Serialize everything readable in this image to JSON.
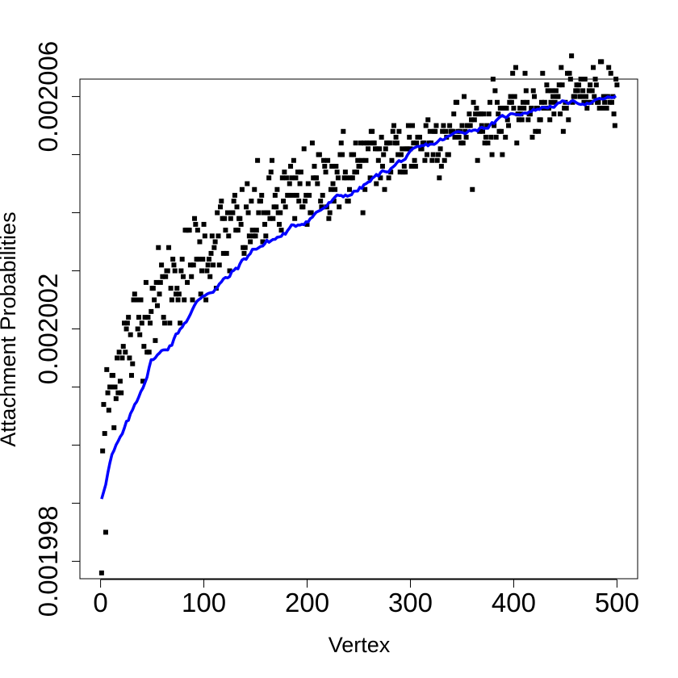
{
  "chart_data": {
    "type": "scatter",
    "title": "",
    "xlabel": "Vertex",
    "ylabel": "Attachment Probabilities",
    "xlim": [
      -20,
      520
    ],
    "ylim": [
      0.0019977,
      0.0020063
    ],
    "xticks": [
      0,
      100,
      200,
      300,
      400,
      500
    ],
    "xtick_labels": [
      "0",
      "100",
      "200",
      "300",
      "400",
      "500"
    ],
    "yticks": [
      0.001998,
      0.001999,
      0.002,
      0.002001,
      0.002002,
      0.002003,
      0.002004,
      0.002005,
      0.002006
    ],
    "ytick_labels": [
      "0.001998",
      "",
      "0.002002",
      "",
      "0.002006"
    ],
    "ytick_label_values": [
      0.001998,
      0.002,
      0.002002,
      0.002004,
      0.002006
    ],
    "ytick_major": [
      0.001998,
      0.001999,
      0.002,
      0.002001,
      0.002002,
      0.002003,
      0.002004,
      0.002005,
      0.002006
    ],
    "grid": false,
    "points_color": "#000000",
    "series": [
      {
        "kind": "points",
        "x_range": [
          1,
          500
        ],
        "count": 500,
        "trend_model": {
          "a": 0.0019985,
          "b": 7.7e-06,
          "k": 0.29
        },
        "outliers": [
          {
            "x": 1,
            "y": 0.0019978
          },
          {
            "x": 5,
            "y": 0.0019985
          },
          {
            "x": 30,
            "y": 0.0020012
          },
          {
            "x": 50,
            "y": 0.0020027
          },
          {
            "x": 110,
            "y": 0.0020034
          },
          {
            "x": 145,
            "y": 0.0020035
          },
          {
            "x": 155,
            "y": 0.0020042
          },
          {
            "x": 220,
            "y": 0.0020049
          },
          {
            "x": 250,
            "y": 0.0020048
          }
        ]
      },
      {
        "kind": "line",
        "color": "#0000ff",
        "description_points": [
          {
            "x": 1,
            "y": 0.0019991
          },
          {
            "x": 10,
            "y": 0.0019998
          },
          {
            "x": 20,
            "y": 0.0020001
          },
          {
            "x": 30,
            "y": 0.0020005
          },
          {
            "x": 40,
            "y": 0.002001
          },
          {
            "x": 50,
            "y": 0.0020015
          },
          {
            "x": 60,
            "y": 0.0020016
          },
          {
            "x": 70,
            "y": 0.0020018
          },
          {
            "x": 80,
            "y": 0.0020021
          },
          {
            "x": 100,
            "y": 0.0020026
          },
          {
            "x": 125,
            "y": 0.0020029
          },
          {
            "x": 150,
            "y": 0.0020034
          },
          {
            "x": 175,
            "y": 0.0020036
          },
          {
            "x": 200,
            "y": 0.0020039
          },
          {
            "x": 225,
            "y": 0.0020042
          },
          {
            "x": 250,
            "y": 0.0020044
          },
          {
            "x": 275,
            "y": 0.0020047
          },
          {
            "x": 300,
            "y": 0.002005
          },
          {
            "x": 325,
            "y": 0.0020052
          },
          {
            "x": 350,
            "y": 0.0020054
          },
          {
            "x": 375,
            "y": 0.0020055
          },
          {
            "x": 400,
            "y": 0.0020057
          },
          {
            "x": 425,
            "y": 0.0020058
          },
          {
            "x": 450,
            "y": 0.0020059
          },
          {
            "x": 475,
            "y": 0.0020059
          },
          {
            "x": 500,
            "y": 0.002006
          }
        ]
      }
    ]
  }
}
